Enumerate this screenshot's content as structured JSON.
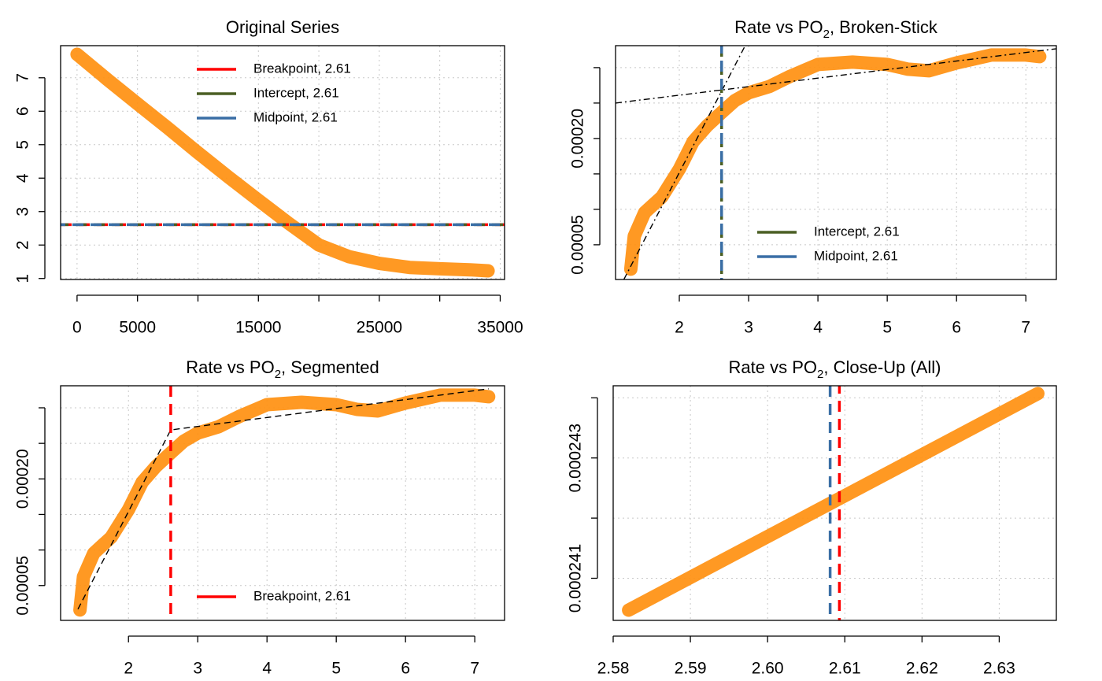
{
  "chart_data": [
    {
      "type": "line",
      "title": [
        "Original Series"
      ],
      "x": [
        0,
        2500,
        5000,
        7500,
        10000,
        12500,
        15000,
        17500,
        20000,
        22500,
        25000,
        27500,
        30000,
        32500,
        34000
      ],
      "series": [
        {
          "color": "#ff9010",
          "values": [
            7.7,
            6.95,
            6.22,
            5.5,
            4.76,
            4.04,
            3.34,
            2.65,
            2.0,
            1.65,
            1.45,
            1.33,
            1.29,
            1.26,
            1.23
          ]
        }
      ],
      "xlim": [
        -1360,
        35360
      ],
      "ylim": [
        0.97,
        7.96
      ],
      "xticks": [
        0,
        5000,
        {
          "value": 10000,
          "label": null
        },
        15000,
        {
          "value": 20000,
          "label": null
        },
        25000,
        {
          "value": 30000,
          "label": null
        },
        35000
      ],
      "yticks": [
        1,
        2,
        3,
        4,
        5,
        6,
        7
      ],
      "grid": true,
      "legend": "top",
      "ref_lines": [
        {
          "name": "Breakpoint, 2.61",
          "color": "#ff0000",
          "orientation": "h",
          "value": 2.61
        },
        {
          "name": "Intercept, 2.61",
          "color": "#4a5e23",
          "orientation": "h",
          "value": 2.61
        },
        {
          "name": "Midpoint, 2.61",
          "color": "#3a6ea5",
          "orientation": "h",
          "value": 2.61
        }
      ]
    },
    {
      "type": "line",
      "title": [
        "Rate vs PO",
        "2",
        ", Broken-Stick"
      ],
      "x": [
        1.3,
        1.35,
        1.5,
        1.75,
        2.0,
        2.2,
        2.4,
        2.61,
        2.8,
        3.0,
        3.3,
        3.6,
        4.0,
        4.5,
        5.0,
        5.3,
        5.6,
        6.0,
        6.5,
        7.0,
        7.2
      ],
      "series": [
        {
          "color": "#ff9010",
          "values": [
            1.56e-05,
            6.22e-05,
            9.56e-05,
            0.0001178,
            0.0001567,
            0.0001956,
            0.0002178,
            0.0002367,
            0.0002533,
            0.0002644,
            0.0002733,
            0.0002878,
            0.0003044,
            0.0003078,
            0.0003044,
            0.0002978,
            0.0002956,
            0.0003067,
            0.0003178,
            0.0003178,
            0.0003156
          ]
        }
      ],
      "xlim": [
        1.08,
        7.44
      ],
      "ylim": [
        1e-06,
        0.000331
      ],
      "xticks": [
        2,
        3,
        4,
        5,
        6,
        7
      ],
      "yticks": [
        5e-05,
        {
          "value": 0.0001,
          "label": null
        },
        {
          "value": 0.00015,
          "label": null
        },
        {
          "value": 0.0002,
          "label": "0.00020"
        },
        {
          "value": 0.00025,
          "label": null
        },
        {
          "value": 0.0003,
          "label": null
        }
      ],
      "grid": true,
      "legend": "bottomright",
      "fit_lines": [
        {
          "x": [
            1.2,
            2.95
          ],
          "y": [
            1.1e-06,
            0.000331
          ],
          "linestyle": "dashdot"
        },
        {
          "x": [
            1.08,
            7.44
          ],
          "y": [
            0.00025,
            0.0003267
          ],
          "linestyle": "dashdot"
        }
      ],
      "ref_lines": [
        {
          "name": "Intercept, 2.61",
          "color": "#4a5e23",
          "orientation": "v",
          "value": 2.61
        },
        {
          "name": "Midpoint, 2.61",
          "color": "#3a6ea5",
          "orientation": "v",
          "value": 2.61
        }
      ]
    },
    {
      "type": "line",
      "title": [
        "Rate vs PO",
        "2",
        ", Segmented"
      ],
      "x": [
        1.3,
        1.35,
        1.5,
        1.75,
        2.0,
        2.2,
        2.4,
        2.61,
        2.8,
        3.0,
        3.3,
        3.6,
        4.0,
        4.5,
        5.0,
        5.3,
        5.6,
        6.0,
        6.5,
        7.0,
        7.2
      ],
      "series": [
        {
          "color": "#ff9010",
          "values": [
            1.56e-05,
            6.22e-05,
            9.56e-05,
            0.0001178,
            0.0001567,
            0.0001956,
            0.0002178,
            0.0002367,
            0.0002533,
            0.0002644,
            0.0002733,
            0.0002878,
            0.0003044,
            0.0003078,
            0.0003044,
            0.0002978,
            0.0002956,
            0.0003067,
            0.0003178,
            0.0003178,
            0.0003156
          ]
        }
      ],
      "xlim": [
        1.02,
        7.43
      ],
      "ylim": [
        1e-06,
        0.000331
      ],
      "xticks": [
        2,
        3,
        4,
        5,
        6,
        7
      ],
      "yticks": [
        5e-05,
        {
          "value": 0.0001,
          "label": null
        },
        {
          "value": 0.00015,
          "label": null
        },
        {
          "value": 0.0002,
          "label": "0.00020"
        },
        {
          "value": 0.00025,
          "label": null
        },
        {
          "value": 0.0003,
          "label": null
        }
      ],
      "grid": true,
      "legend": "bottom",
      "fit_lines": [
        {
          "x": [
            1.27,
            2.61,
            7.2
          ],
          "y": [
            1.67e-05,
            0.0002689,
            0.0003267
          ],
          "linestyle": "dashed"
        }
      ],
      "ref_lines": [
        {
          "name": "Breakpoint, 2.61",
          "color": "#ff0000",
          "orientation": "v",
          "value": 2.61
        }
      ]
    },
    {
      "type": "line",
      "title": [
        "Rate vs PO",
        "2",
        ", Close-Up (All)"
      ],
      "x": [
        2.582,
        2.635
      ],
      "series": [
        {
          "color": "#ff9010",
          "values": [
            0.00024047,
            0.00024407
          ]
        }
      ],
      "xlim": [
        2.58,
        2.6374
      ],
      "ylim": [
        0.0002403,
        0.0002442
      ],
      "xticks": [
        2.58,
        2.59,
        {
          "value": 2.6,
          "label": "2.60"
        },
        2.61,
        2.62,
        2.63
      ],
      "yticks": [
        0.000241,
        {
          "value": 0.000242,
          "label": null
        },
        0.000243,
        {
          "value": 0.000244,
          "label": null
        }
      ],
      "grid": true,
      "ref_lines": [
        {
          "color": "#3a6ea5",
          "orientation": "v",
          "value": 2.6081
        },
        {
          "color": "#ff0000",
          "orientation": "v",
          "value": 2.6093
        }
      ]
    }
  ]
}
